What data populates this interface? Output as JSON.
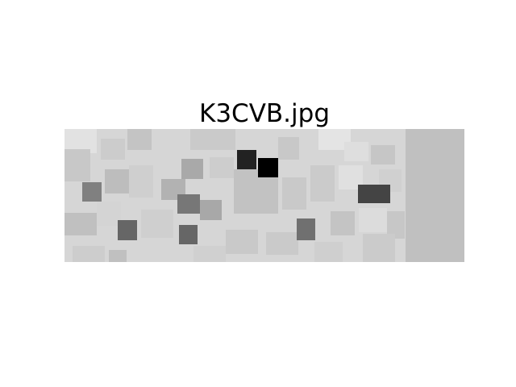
{
  "title": "K3CVB.jpg"
}
